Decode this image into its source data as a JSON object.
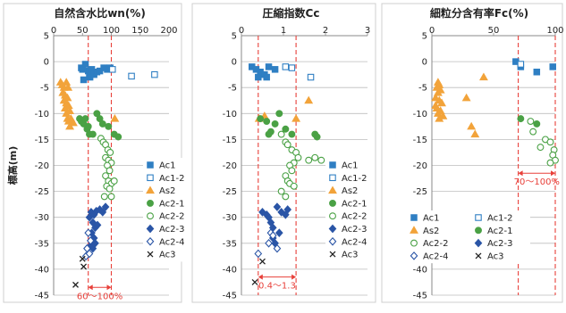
{
  "series_styles": {
    "Ac1": {
      "shape": "square",
      "filled": true,
      "color": "#2f7fc3"
    },
    "Ac1-2": {
      "shape": "square",
      "filled": false,
      "color": "#2f7fc3"
    },
    "As2": {
      "shape": "triangle",
      "filled": true,
      "color": "#f2a33a"
    },
    "Ac2-1": {
      "shape": "circle",
      "filled": true,
      "color": "#4aa145"
    },
    "Ac2-2": {
      "shape": "circle",
      "filled": false,
      "color": "#4aa145"
    },
    "Ac2-3": {
      "shape": "diamond",
      "filled": true,
      "color": "#2a55a6"
    },
    "Ac2-4": {
      "shape": "diamond",
      "filled": false,
      "color": "#2a55a6"
    },
    "Ac3": {
      "shape": "x",
      "filled": false,
      "color": "#222222"
    }
  },
  "accent_color": "#e8403a",
  "chart_data": [
    {
      "type": "scatter",
      "title": "自然含水比wn(%)",
      "ylabel": "標高(m)",
      "xlim": [
        0,
        200
      ],
      "ylim": [
        -45,
        5
      ],
      "xticks": [
        "0",
        "50",
        "100",
        "150",
        "200"
      ],
      "yticks": [
        "5",
        "0",
        "-5",
        "-10",
        "-15",
        "-20",
        "-25",
        "-30",
        "-35",
        "-40",
        "-45"
      ],
      "grid": "horizontal",
      "legend": "right-bottom, one column",
      "reference_lines": [
        60,
        100
      ],
      "annotation": {
        "text": "60～100%",
        "range": [
          60,
          100
        ],
        "y": -43.5
      },
      "series": [
        {
          "name": "Ac1",
          "points": [
            [
              48,
              -1.2
            ],
            [
              50,
              -1.5
            ],
            [
              55,
              -0.5
            ],
            [
              60,
              -1.8
            ],
            [
              62,
              -2.5
            ],
            [
              63,
              -3
            ],
            [
              66,
              -1.5
            ],
            [
              70,
              -2.5
            ],
            [
              75,
              -2
            ],
            [
              80,
              -1.8
            ],
            [
              87,
              -1.2
            ],
            [
              93,
              -1.5
            ],
            [
              98,
              -1.2
            ],
            [
              52,
              -3.5
            ]
          ]
        },
        {
          "name": "Ac1-2",
          "points": [
            [
              102,
              -1.5
            ],
            [
              135,
              -2.8
            ],
            [
              175,
              -2.5
            ]
          ]
        },
        {
          "name": "As2",
          "points": [
            [
              12,
              -4
            ],
            [
              15,
              -4.5
            ],
            [
              18,
              -5
            ],
            [
              22,
              -4
            ],
            [
              25,
              -5
            ],
            [
              16,
              -6
            ],
            [
              20,
              -6.5
            ],
            [
              24,
              -7
            ],
            [
              18,
              -7.5
            ],
            [
              22,
              -8
            ],
            [
              26,
              -8.5
            ],
            [
              20,
              -9
            ],
            [
              28,
              -9.5
            ],
            [
              22,
              -10
            ],
            [
              24,
              -11
            ],
            [
              26,
              -11.5
            ],
            [
              30,
              -11
            ],
            [
              34,
              -11.8
            ],
            [
              28,
              -12.5
            ],
            [
              106,
              -11
            ]
          ]
        },
        {
          "name": "Ac2-1",
          "points": [
            [
              45,
              -11
            ],
            [
              48,
              -11.5
            ],
            [
              52,
              -12
            ],
            [
              55,
              -11
            ],
            [
              58,
              -13
            ],
            [
              62,
              -14
            ],
            [
              68,
              -14
            ],
            [
              75,
              -10
            ],
            [
              80,
              -11
            ],
            [
              85,
              -12
            ],
            [
              95,
              -12.5
            ],
            [
              105,
              -14
            ],
            [
              112,
              -14.5
            ],
            [
              60,
              -12.5
            ]
          ]
        },
        {
          "name": "Ac2-2",
          "points": [
            [
              82,
              -14.8
            ],
            [
              86,
              -15.5
            ],
            [
              90,
              -16
            ],
            [
              94,
              -17
            ],
            [
              98,
              -17.5
            ],
            [
              90,
              -18.5
            ],
            [
              95,
              -19
            ],
            [
              100,
              -19.5
            ],
            [
              93,
              -20
            ],
            [
              97,
              -21
            ],
            [
              90,
              -22
            ],
            [
              95,
              -23
            ],
            [
              100,
              -23.5
            ],
            [
              92,
              -24
            ],
            [
              97,
              -24.5
            ],
            [
              105,
              -23
            ],
            [
              88,
              -26
            ],
            [
              100,
              -26
            ]
          ]
        },
        {
          "name": "Ac2-3",
          "points": [
            [
              62,
              -30
            ],
            [
              65,
              -29
            ],
            [
              70,
              -29.5
            ],
            [
              74,
              -28.8
            ],
            [
              80,
              -28.5
            ],
            [
              85,
              -29
            ],
            [
              90,
              -28
            ],
            [
              68,
              -31
            ],
            [
              72,
              -32
            ],
            [
              76,
              -31.5
            ],
            [
              66,
              -33
            ],
            [
              70,
              -34
            ],
            [
              64,
              -35.5
            ],
            [
              68,
              -36
            ],
            [
              72,
              -35
            ]
          ]
        },
        {
          "name": "Ac2-4",
          "points": [
            [
              60,
              -33
            ],
            [
              64,
              -34.5
            ],
            [
              58,
              -36
            ],
            [
              56,
              -37.5
            ],
            [
              62,
              -37
            ]
          ]
        },
        {
          "name": "Ac3",
          "points": [
            [
              50,
              -38
            ],
            [
              52,
              -39.5
            ],
            [
              38,
              -43
            ]
          ]
        }
      ]
    },
    {
      "type": "scatter",
      "title": "圧縮指数Cc",
      "ylabel": "",
      "xlim": [
        0,
        3
      ],
      "ylim": [
        -45,
        5
      ],
      "xticks": [
        "0",
        "1",
        "2",
        "3"
      ],
      "yticks": [
        "5",
        "0",
        "-5",
        "-10",
        "-15",
        "-20",
        "-25",
        "-30",
        "-35",
        "-40",
        "-45"
      ],
      "grid": "horizontal",
      "legend": "right-bottom, one column",
      "reference_lines": [
        0.4,
        1.3
      ],
      "annotation": {
        "text": "0.4～1.3",
        "range": [
          0.4,
          1.3
        ],
        "y": -41.5
      },
      "series": [
        {
          "name": "Ac1",
          "points": [
            [
              0.25,
              -1
            ],
            [
              0.35,
              -1.5
            ],
            [
              0.45,
              -2
            ],
            [
              0.55,
              -2.5
            ],
            [
              0.4,
              -3
            ],
            [
              0.65,
              -1
            ],
            [
              0.8,
              -1.5
            ],
            [
              0.6,
              -3
            ]
          ]
        },
        {
          "name": "Ac1-2",
          "points": [
            [
              1.05,
              -1
            ],
            [
              1.2,
              -1.2
            ],
            [
              1.65,
              -3
            ]
          ]
        },
        {
          "name": "As2",
          "points": [
            [
              0.42,
              -11
            ],
            [
              0.55,
              -10.5
            ],
            [
              1.3,
              -11
            ],
            [
              1.6,
              -7.5
            ]
          ]
        },
        {
          "name": "Ac2-1",
          "points": [
            [
              0.45,
              -11
            ],
            [
              0.6,
              -11.5
            ],
            [
              0.7,
              -13.5
            ],
            [
              0.8,
              -12
            ],
            [
              0.9,
              -10
            ],
            [
              1.05,
              -13
            ],
            [
              1.2,
              -14
            ],
            [
              1.75,
              -14
            ],
            [
              1.8,
              -14.5
            ],
            [
              0.65,
              -14
            ]
          ]
        },
        {
          "name": "Ac2-2",
          "points": [
            [
              0.95,
              -14
            ],
            [
              1.05,
              -15.5
            ],
            [
              1.1,
              -16
            ],
            [
              1.2,
              -17
            ],
            [
              1.3,
              -17.5
            ],
            [
              1.35,
              -18.5
            ],
            [
              1.25,
              -19.5
            ],
            [
              1.6,
              -19
            ],
            [
              1.75,
              -18.5
            ],
            [
              1.9,
              -19
            ],
            [
              1.15,
              -20
            ],
            [
              1.2,
              -21
            ],
            [
              1.05,
              -22
            ],
            [
              1.1,
              -23
            ],
            [
              1.15,
              -23.5
            ],
            [
              1.25,
              -24
            ],
            [
              0.95,
              -25
            ],
            [
              1.05,
              -26
            ]
          ]
        },
        {
          "name": "Ac2-3",
          "points": [
            [
              0.5,
              -29
            ],
            [
              0.6,
              -29.5
            ],
            [
              0.65,
              -30
            ],
            [
              0.7,
              -31
            ],
            [
              0.75,
              -32
            ],
            [
              0.85,
              -28
            ],
            [
              0.95,
              -29
            ],
            [
              1.05,
              -29.5
            ],
            [
              1.1,
              -28.5
            ],
            [
              0.9,
              -33
            ],
            [
              0.75,
              -34
            ],
            [
              0.8,
              -35
            ]
          ]
        },
        {
          "name": "Ac2-4",
          "points": [
            [
              0.7,
              -33
            ],
            [
              0.75,
              -33.5
            ],
            [
              0.65,
              -35
            ],
            [
              0.85,
              -36
            ],
            [
              0.4,
              -37
            ]
          ]
        },
        {
          "name": "Ac3",
          "points": [
            [
              0.5,
              -38.5
            ],
            [
              0.32,
              -42.5
            ]
          ]
        }
      ]
    },
    {
      "type": "scatter",
      "title": "細粒分含有率Fc(%)",
      "ylabel": "",
      "xlim": [
        0,
        100
      ],
      "ylim": [
        -45,
        5
      ],
      "xticks": [
        "0",
        "50",
        "100"
      ],
      "yticks": [
        "5",
        "0",
        "-5",
        "-10",
        "-15",
        "-20",
        "-25",
        "-30",
        "-35",
        "-40",
        "-45"
      ],
      "grid": "horizontal",
      "legend": "bottom, two columns",
      "reference_lines": [
        70,
        100
      ],
      "annotation": {
        "text": "70～100%",
        "range": [
          70,
          100
        ],
        "y": -21.5
      },
      "series": [
        {
          "name": "Ac1",
          "points": [
            [
              68,
              0
            ],
            [
              72,
              -1
            ],
            [
              85,
              -2
            ],
            [
              98,
              -1
            ]
          ]
        },
        {
          "name": "Ac1-2",
          "points": [
            [
              72,
              -0.5
            ]
          ]
        },
        {
          "name": "As2",
          "points": [
            [
              5,
              -4
            ],
            [
              6,
              -4.5
            ],
            [
              4,
              -5
            ],
            [
              7,
              -5.5
            ],
            [
              5,
              -6
            ],
            [
              3,
              -7
            ],
            [
              6,
              -7.5
            ],
            [
              8,
              -8
            ],
            [
              4,
              -9
            ],
            [
              7,
              -9.5
            ],
            [
              5,
              -10
            ],
            [
              9,
              -10.5
            ],
            [
              6,
              -11
            ],
            [
              3,
              -8.5
            ],
            [
              28,
              -7
            ],
            [
              42,
              -3
            ],
            [
              32,
              -12.5
            ],
            [
              35,
              -14
            ]
          ]
        },
        {
          "name": "Ac2-1",
          "points": [
            [
              72,
              -11
            ],
            [
              85,
              -12
            ]
          ]
        },
        {
          "name": "Ac2-2",
          "points": [
            [
              80,
              -11.5
            ],
            [
              82,
              -13.5
            ],
            [
              92,
              -15
            ],
            [
              96,
              -15.5
            ],
            [
              99,
              -17
            ],
            [
              98,
              -18
            ],
            [
              100,
              -19
            ],
            [
              96,
              -19.5
            ],
            [
              88,
              -16.5
            ]
          ]
        },
        {
          "name": "Ac2-3",
          "points": []
        },
        {
          "name": "Ac2-4",
          "points": []
        },
        {
          "name": "Ac3",
          "points": []
        }
      ]
    }
  ]
}
